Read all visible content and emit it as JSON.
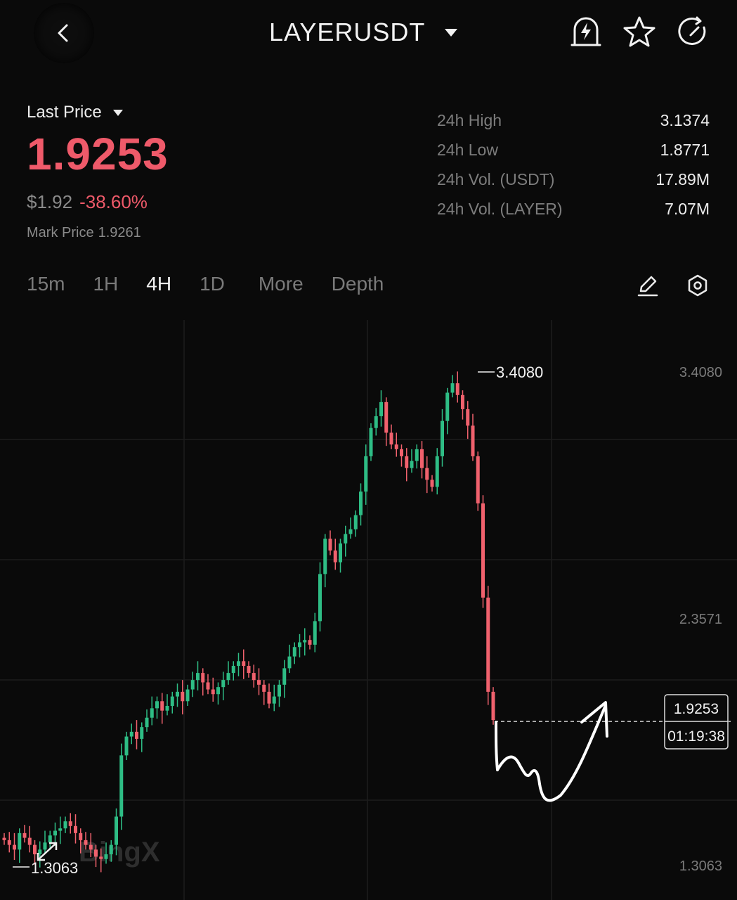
{
  "header": {
    "title": "LAYERUSDT",
    "icons": [
      "back-arrow-icon",
      "alert-bell-icon",
      "star-icon",
      "refresh-icon"
    ]
  },
  "price": {
    "label": "Last Price",
    "last": "1.9253",
    "usd": "$1.92",
    "change": "-38.60%",
    "mark_label": "Mark Price",
    "mark_value": "1.9261"
  },
  "stats": [
    {
      "label": "24h High",
      "value": "3.1374"
    },
    {
      "label": "24h Low",
      "value": "1.8771"
    },
    {
      "label": "24h Vol. (USDT)",
      "value": "17.89M"
    },
    {
      "label": "24h Vol. (LAYER)",
      "value": "7.07M"
    }
  ],
  "tabs": [
    "15m",
    "1H",
    "4H",
    "1D",
    "More",
    "Depth"
  ],
  "active_tab": "4H",
  "tool_icons": [
    "pencil-icon",
    "settings-hexagon-icon"
  ],
  "chart_data": {
    "type": "candlestick",
    "y_ticks": [
      "3.4080",
      "2.3571",
      "1.3063"
    ],
    "y_range": [
      1.3063,
      3.408
    ],
    "max_label": "3.4080",
    "min_label": "1.3063",
    "current_price": "1.9253",
    "countdown": "01:19:38",
    "watermark": "BingX",
    "colors": {
      "up": "#2ebd85",
      "down": "#f0616d"
    },
    "close_series": [
      1.42,
      1.4,
      1.38,
      1.45,
      1.43,
      1.4,
      1.36,
      1.38,
      1.41,
      1.44,
      1.46,
      1.47,
      1.5,
      1.48,
      1.45,
      1.42,
      1.4,
      1.38,
      1.35,
      1.34,
      1.36,
      1.4,
      1.52,
      1.78,
      1.86,
      1.88,
      1.85,
      1.9,
      1.94,
      1.98,
      2.01,
      1.97,
      1.99,
      2.03,
      2.05,
      2.01,
      2.06,
      2.1,
      2.13,
      2.09,
      2.06,
      2.04,
      2.07,
      2.1,
      2.13,
      2.16,
      2.18,
      2.16,
      2.13,
      2.1,
      2.08,
      2.05,
      2.0,
      2.03,
      2.08,
      2.15,
      2.2,
      2.24,
      2.26,
      2.27,
      2.25,
      2.35,
      2.55,
      2.7,
      2.65,
      2.6,
      2.68,
      2.72,
      2.74,
      2.8,
      2.9,
      3.05,
      3.17,
      3.22,
      3.28,
      3.15,
      3.1,
      3.08,
      3.05,
      3.0,
      3.03,
      3.08,
      3.0,
      2.95,
      2.92,
      3.05,
      3.2,
      3.32,
      3.36,
      3.31,
      3.25,
      3.18,
      3.05,
      2.85,
      2.45,
      2.05,
      1.93
    ],
    "annotation": "hand-drawn arrow curving down then up"
  }
}
